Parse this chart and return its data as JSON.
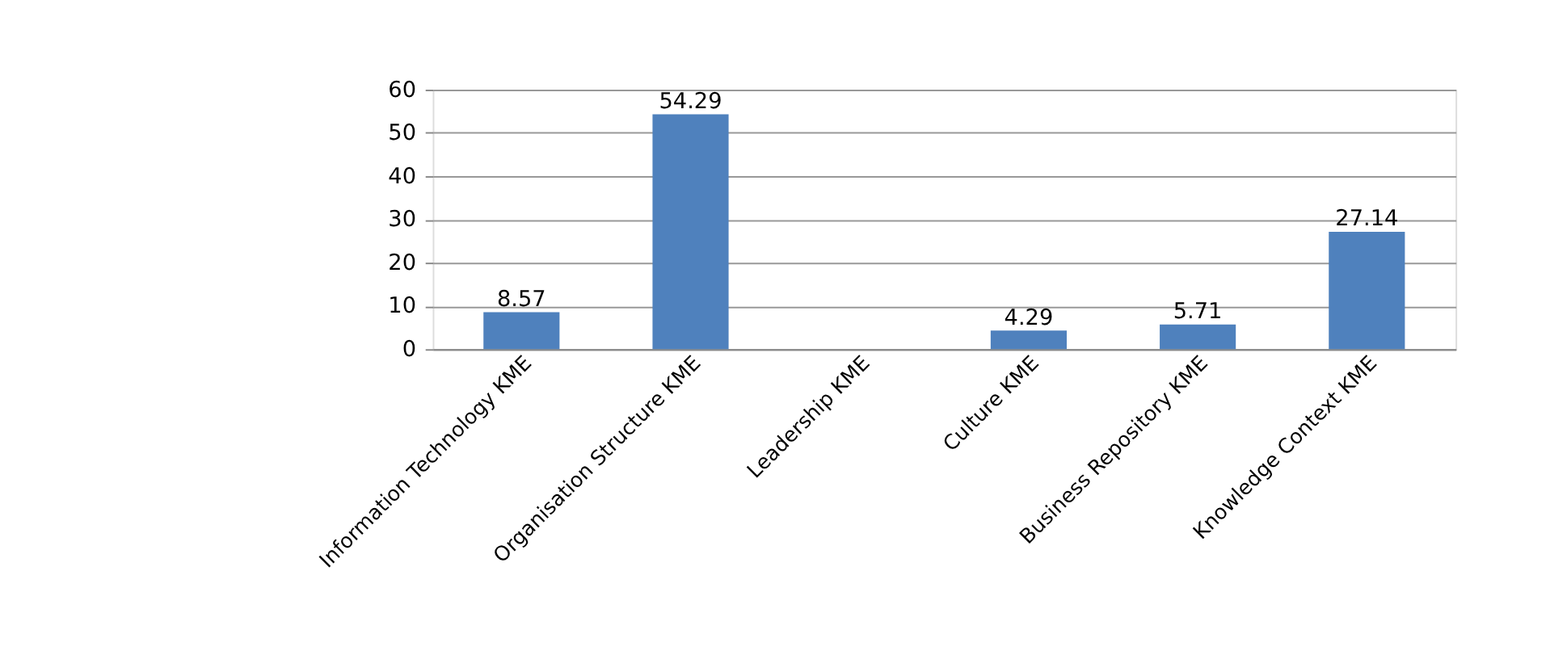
{
  "chart_data": {
    "type": "bar",
    "categories": [
      "Information Technology KME",
      "Organisation Structure KME",
      "Leadership KME",
      "Culture KME",
      "Business Repository KME",
      "Knowledge Context KME"
    ],
    "values": [
      8.57,
      54.29,
      0,
      4.29,
      5.71,
      27.14
    ],
    "value_labels": [
      "8.57",
      "54.29",
      null,
      "4.29",
      "5.71",
      "27.14"
    ],
    "color": "#4f81bd",
    "ylim": [
      0,
      60
    ],
    "yticks": [
      0,
      10,
      20,
      30,
      40,
      50,
      60
    ],
    "grid": "y"
  }
}
